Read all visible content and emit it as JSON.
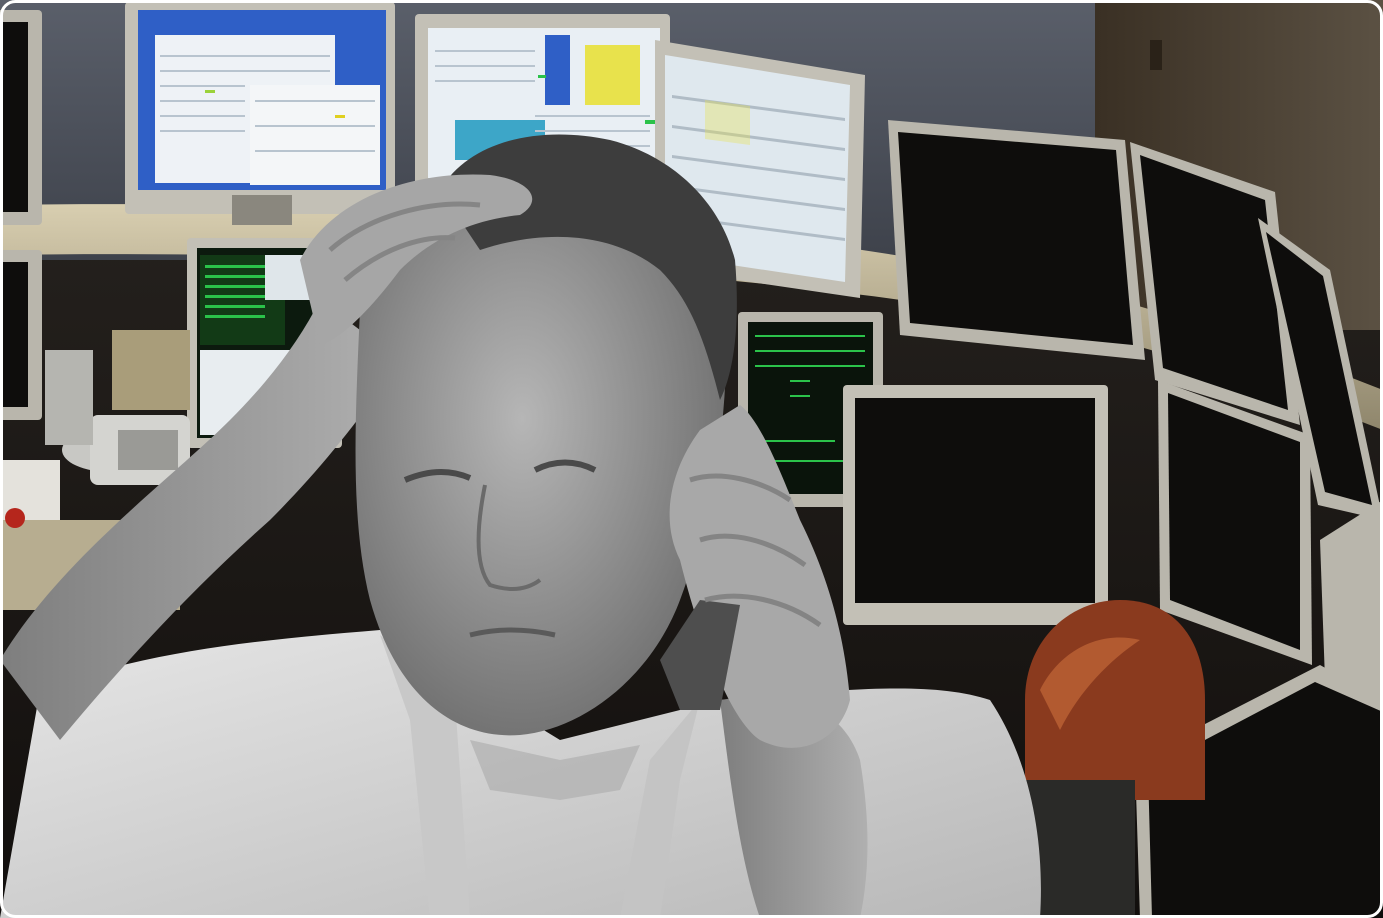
{
  "image": {
    "subject": "stressed-trader-on-phone",
    "setting": "trading-floor-with-monitors",
    "palette": {
      "wall": "#4f5460",
      "desk_tan": "#c9bfa2",
      "monitor_bezel": "#b9b6ac",
      "monitor_dark": "#0e0d0c",
      "spreadsheet_screen": "#e9eff4",
      "terminal_green": "#2bc24a",
      "blue_taskbar": "#2f5fc6",
      "yellow_panel": "#e8e24c",
      "shirt_gray": "#d8d8d8",
      "skin_gray": "#9a9a9a",
      "hair_gray": "#3d3d3d",
      "red_hair": "#8a3a1e"
    }
  }
}
